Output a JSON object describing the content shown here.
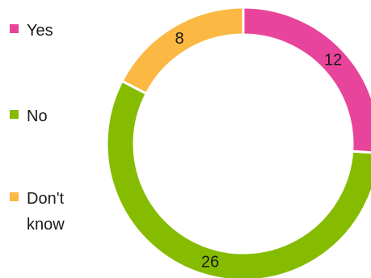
{
  "chart_data": {
    "type": "pie",
    "variant": "donut",
    "categories": [
      "Yes",
      "No",
      "Don't know"
    ],
    "values": [
      12,
      26,
      8
    ],
    "colors": [
      "#e8449b",
      "#86bc00",
      "#fbb843"
    ],
    "legend_position": "left",
    "data_labels": [
      "12",
      "26",
      "8"
    ]
  }
}
